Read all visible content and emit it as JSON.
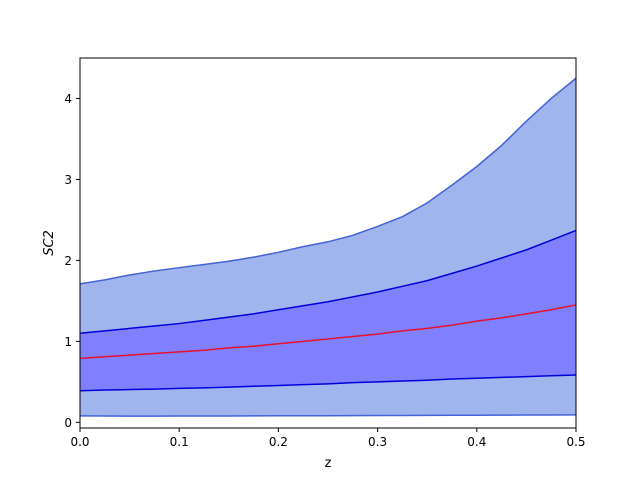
{
  "chart_data": {
    "type": "area",
    "title": "",
    "xlabel": "z",
    "ylabel": "SC2",
    "xlim": [
      0,
      0.5
    ],
    "ylim": [
      -0.07,
      4.5
    ],
    "grid": false,
    "legend": "none",
    "xticks": [
      0.0,
      0.1,
      0.2,
      0.3,
      0.4,
      0.5
    ],
    "xtick_labels": [
      "0.0",
      "0.1",
      "0.2",
      "0.3",
      "0.4",
      "0.5"
    ],
    "yticks": [
      0,
      1,
      2,
      3,
      4
    ],
    "ytick_labels": [
      "0",
      "1",
      "2",
      "3",
      "4"
    ],
    "x": [
      0.0,
      0.025,
      0.05,
      0.075,
      0.1,
      0.125,
      0.15,
      0.175,
      0.2,
      0.225,
      0.25,
      0.275,
      0.3,
      0.325,
      0.35,
      0.375,
      0.4,
      0.425,
      0.45,
      0.475,
      0.5
    ],
    "bands": [
      {
        "role": "outer",
        "fill": "#a0b4ee",
        "edge": "#4363d8",
        "lower": [
          0.08,
          0.078,
          0.077,
          0.077,
          0.078,
          0.078,
          0.079,
          0.08,
          0.081,
          0.082,
          0.082,
          0.083,
          0.084,
          0.085,
          0.086,
          0.087,
          0.088,
          0.089,
          0.09,
          0.091,
          0.092
        ],
        "upper": [
          1.71,
          1.76,
          1.82,
          1.87,
          1.91,
          1.95,
          1.99,
          2.04,
          2.1,
          2.17,
          2.23,
          2.31,
          2.42,
          2.54,
          2.71,
          2.93,
          3.16,
          3.42,
          3.72,
          4.0,
          4.25
        ]
      },
      {
        "role": "inner",
        "fill": "#8080ff",
        "edge": "#0000dd",
        "lower": [
          0.39,
          0.4,
          0.405,
          0.41,
          0.42,
          0.425,
          0.435,
          0.445,
          0.455,
          0.465,
          0.475,
          0.49,
          0.5,
          0.51,
          0.52,
          0.535,
          0.545,
          0.555,
          0.565,
          0.575,
          0.585
        ],
        "upper": [
          1.1,
          1.13,
          1.16,
          1.19,
          1.22,
          1.26,
          1.3,
          1.34,
          1.39,
          1.44,
          1.49,
          1.55,
          1.61,
          1.68,
          1.75,
          1.84,
          1.93,
          2.03,
          2.13,
          2.25,
          2.37
        ]
      }
    ],
    "series": [
      {
        "color": "#e8102a",
        "values": [
          0.79,
          0.81,
          0.83,
          0.85,
          0.87,
          0.89,
          0.92,
          0.94,
          0.97,
          1.0,
          1.03,
          1.06,
          1.09,
          1.13,
          1.16,
          1.2,
          1.25,
          1.29,
          1.34,
          1.39,
          1.45
        ]
      }
    ]
  }
}
